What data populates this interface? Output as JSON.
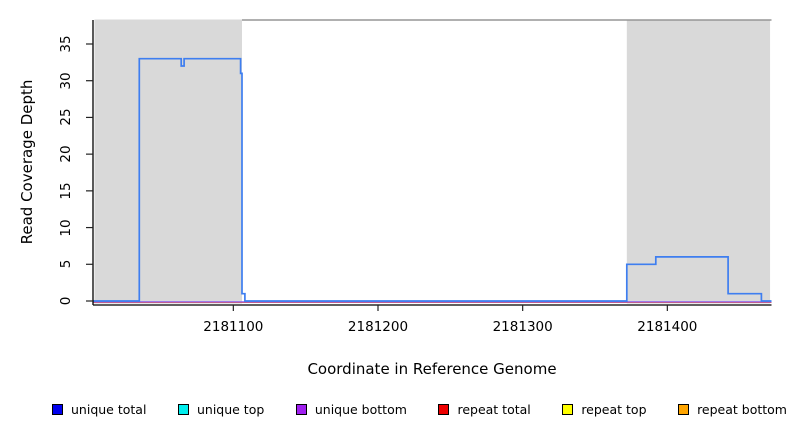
{
  "chart_data": {
    "type": "line",
    "subtype": "step",
    "title": "",
    "xlabel": "Coordinate in Reference Genome",
    "ylabel": "Read Coverage Depth",
    "xlim": [
      2181003,
      2181472
    ],
    "ylim": [
      0,
      38
    ],
    "x_ticks": [
      2181100,
      2181200,
      2181300,
      2181400
    ],
    "y_ticks": [
      0,
      5,
      10,
      15,
      20,
      25,
      30,
      35
    ],
    "grid": false,
    "background_color": "#ffffff",
    "shaded_regions": [
      {
        "name": "read-cluster-1",
        "x_start": 2181004,
        "x_end": 2181106,
        "color": "#d9d9d9"
      },
      {
        "name": "read-cluster-2",
        "x_start": 2181372,
        "x_end": 2181471,
        "color": "#d9d9d9"
      }
    ],
    "series": [
      {
        "name": "unique total",
        "color": "#3e7ef0",
        "points": [
          [
            2181003,
            0
          ],
          [
            2181035,
            0
          ],
          [
            2181035,
            33
          ],
          [
            2181064,
            33
          ],
          [
            2181064,
            32
          ],
          [
            2181066,
            32
          ],
          [
            2181066,
            33
          ],
          [
            2181105,
            33
          ],
          [
            2181105,
            31
          ],
          [
            2181106,
            31
          ],
          [
            2181106,
            1
          ],
          [
            2181108,
            1
          ],
          [
            2181108,
            0
          ],
          [
            2181372,
            0
          ],
          [
            2181372,
            5
          ],
          [
            2181392,
            5
          ],
          [
            2181392,
            6
          ],
          [
            2181442,
            6
          ],
          [
            2181442,
            1
          ],
          [
            2181465,
            1
          ],
          [
            2181465,
            0
          ],
          [
            2181472,
            0
          ]
        ]
      },
      {
        "name": "unique bottom",
        "color": "#8a5cf0",
        "points": [
          [
            2181003,
            0
          ],
          [
            2181472,
            0
          ]
        ]
      },
      {
        "name": "repeat total",
        "color": "#e05c5c",
        "points": [
          [
            2181003,
            0
          ],
          [
            2181472,
            0
          ]
        ]
      }
    ],
    "legend": {
      "position": "bottom",
      "items": [
        {
          "label": "unique total",
          "color": "#0000ee"
        },
        {
          "label": "unique top",
          "color": "#00eeee"
        },
        {
          "label": "unique bottom",
          "color": "#a020f0"
        },
        {
          "label": "repeat total",
          "color": "#ee0000"
        },
        {
          "label": "repeat top",
          "color": "#ffff00"
        },
        {
          "label": "repeat bottom",
          "color": "#ffa500"
        }
      ]
    }
  }
}
